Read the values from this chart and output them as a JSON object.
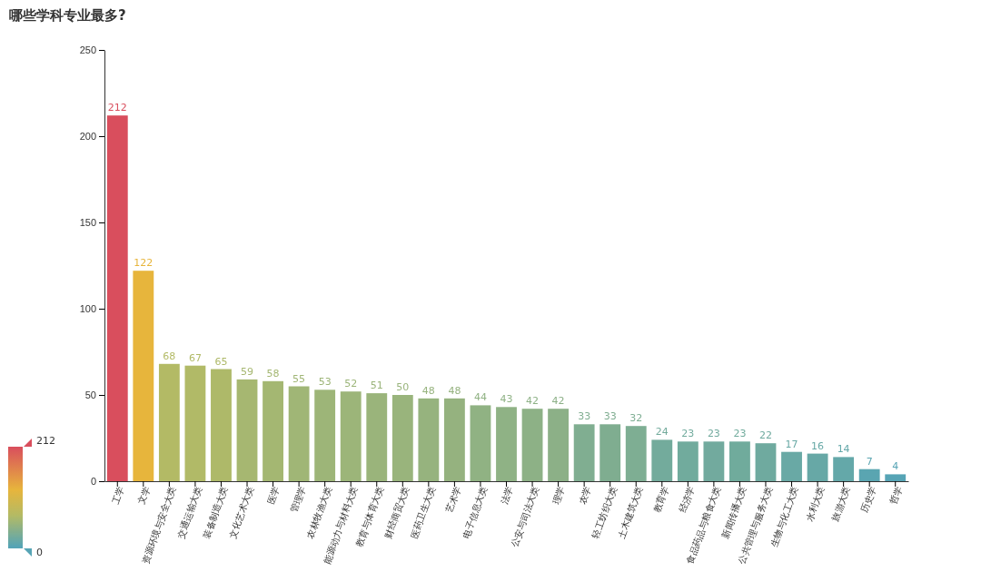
{
  "chart_data": {
    "type": "bar",
    "title": "哪些学科专业最多?",
    "categories": [
      "工学",
      "文学",
      "资源环境与安全大类",
      "交通运输大类",
      "装备制造大类",
      "文化艺术大类",
      "医学",
      "管理学",
      "农林牧渔大类",
      "能源动力与材料大类",
      "教育与体育大类",
      "财经商贸大类",
      "医药卫生大类",
      "艺术学",
      "电子信息大类",
      "法学",
      "公安与司法大类",
      "理学",
      "农学",
      "轻工纺织大类",
      "土木建筑大类",
      "教育学",
      "经济学",
      "食品药品与粮食大类",
      "新闻传播大类",
      "公共管理与服务大类",
      "生物与化工大类",
      "水利大类",
      "旅游大类",
      "历史学",
      "哲学"
    ],
    "values": [
      212,
      122,
      68,
      67,
      65,
      59,
      58,
      55,
      53,
      52,
      51,
      50,
      48,
      48,
      44,
      43,
      42,
      42,
      33,
      33,
      32,
      24,
      23,
      23,
      23,
      22,
      17,
      16,
      14,
      7,
      4
    ],
    "colors": [
      "#d94e5d",
      "#e7b53c",
      "#b3ba65",
      "#b1ba67",
      "#aeb969",
      "#a6b771",
      "#a4b772",
      "#a0b676",
      "#9db578",
      "#9cb579",
      "#9ab47b",
      "#99b47c",
      "#96b37e",
      "#95b27f",
      "#90b283",
      "#8fb285",
      "#8db186",
      "#8cb087",
      "#80ae91",
      "#7fad90",
      "#7eae93",
      "#73ab9c",
      "#71ab9d",
      "#72aa9e",
      "#70ab9c",
      "#6faa9f",
      "#69a9a5",
      "#67a8a6",
      "#64a8a9",
      "#5aa5b1",
      "#56a4b5"
    ],
    "ylim": [
      0,
      250
    ],
    "yticks": [
      0,
      50,
      100,
      150,
      200,
      250
    ],
    "grid": false,
    "data_labels": true,
    "clim": [
      0,
      212
    ],
    "cticks": [
      0,
      212
    ]
  }
}
